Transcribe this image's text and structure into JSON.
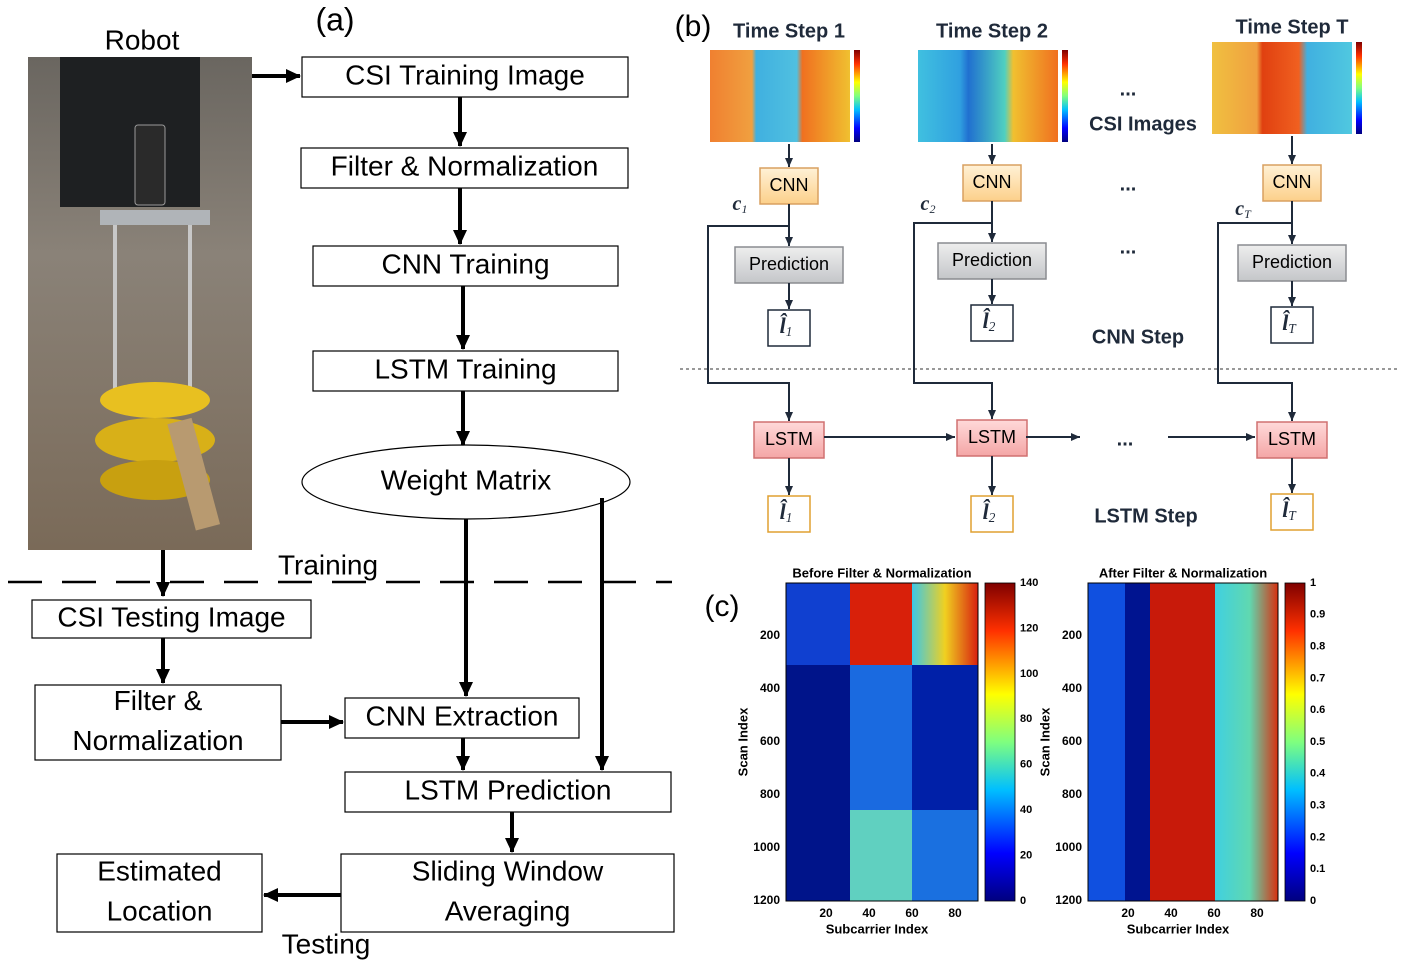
{
  "panel_a": {
    "label": "(a)",
    "robot_label": "Robot",
    "training_label": "Training",
    "testing_label": "Testing",
    "training_nodes": [
      [
        "CSI Training Image"
      ],
      [
        "Filter & Normalization"
      ],
      [
        "CNN Training"
      ],
      [
        "LSTM Training"
      ],
      [
        "Weight Matrix"
      ]
    ],
    "testing_nodes": [
      [
        "CSI Testing Image"
      ],
      [
        "Filter &",
        "Normalization"
      ],
      [
        "CNN Extraction"
      ],
      [
        "LSTM Prediction"
      ],
      [
        "Sliding Window",
        "Averaging"
      ],
      [
        "Estimated",
        "Location"
      ]
    ]
  },
  "panel_b": {
    "label": "(b)",
    "time_steps": [
      {
        "title": "Time Step 1",
        "feature": {
          "symbol": "c",
          "subscript": "1"
        },
        "output": {
          "symbol": "l̂",
          "subscript": "1"
        }
      },
      {
        "title": "Time Step 2",
        "feature": {
          "symbol": "c",
          "subscript": "2"
        },
        "output": {
          "symbol": "l̂",
          "subscript": "2"
        }
      },
      {
        "title": "Time Step T",
        "feature": {
          "symbol": "c",
          "subscript": "T"
        },
        "output": {
          "symbol": "l̂",
          "subscript": "T"
        }
      }
    ],
    "cnn_label": "CNN",
    "prediction_label": "Prediction",
    "lstm_label": "LSTM",
    "ellipsis": "...",
    "csi_images_label": "CSI Images",
    "cnn_step_label": "CNN Step",
    "lstm_step_label": "LSTM Step"
  },
  "panel_c": {
    "label": "(c)",
    "y_label": "Scan Index",
    "x_label": "Subcarrier Index",
    "y_ticks": [
      200,
      400,
      600,
      800,
      1000,
      1200
    ],
    "x_ticks": [
      20,
      40,
      60,
      80
    ],
    "plots": [
      {
        "title": "Before Filter & Normalization",
        "colorbar_ticks": [
          0,
          20,
          40,
          60,
          80,
          100,
          120,
          140
        ]
      },
      {
        "title": "After Filter & Normalization",
        "colorbar_ticks": [
          0,
          0.1,
          0.2,
          0.3,
          0.4,
          0.5,
          0.6,
          0.7,
          0.8,
          0.9,
          1
        ]
      }
    ]
  }
}
